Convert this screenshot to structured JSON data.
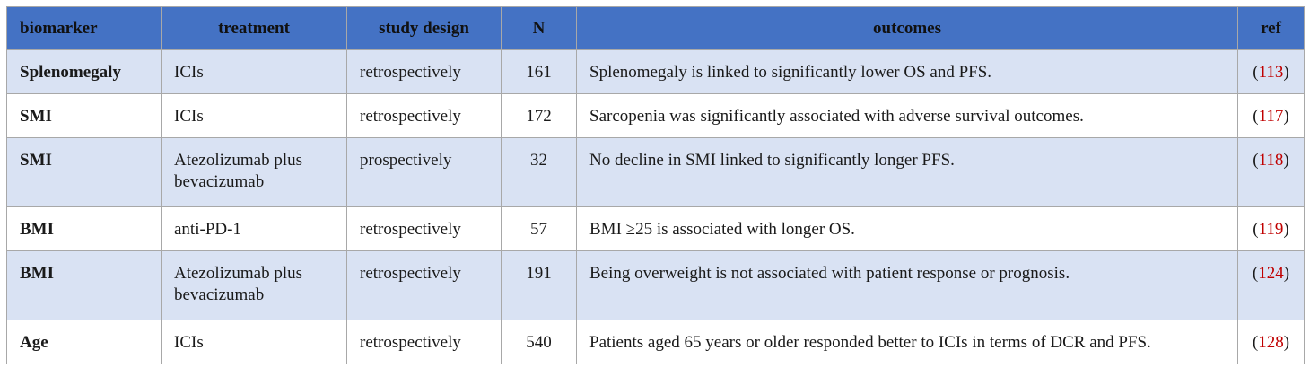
{
  "header": [
    "biomarker",
    "treatment",
    "study design",
    "N",
    "outcomes",
    "ref"
  ],
  "rows": [
    {
      "biomarker": "Splenomegaly",
      "treatment": "ICIs",
      "design": "retrospectively",
      "n": "161",
      "outcome": "Splenomegaly is linked to significantly lower OS and PFS.",
      "ref": "113"
    },
    {
      "biomarker": "SMI",
      "treatment": "ICIs",
      "design": "retrospectively",
      "n": "172",
      "outcome": "Sarcopenia was significantly associated with adverse survival outcomes.",
      "ref": "117"
    },
    {
      "biomarker": "SMI",
      "treatment": "Atezolizumab plus bevacizumab",
      "design": "prospectively",
      "n": "32",
      "outcome": "No decline in SMI linked to significantly longer PFS.",
      "ref": "118"
    },
    {
      "biomarker": "BMI",
      "treatment": "anti-PD-1",
      "design": "retrospectively",
      "n": "57",
      "outcome": "BMI ≥25 is associated with longer OS.",
      "ref": "119"
    },
    {
      "biomarker": "BMI",
      "treatment": "Atezolizumab plus bevacizumab",
      "design": "retrospectively",
      "n": "191",
      "outcome": "Being overweight is not associated with patient response or prognosis.",
      "ref": "124"
    },
    {
      "biomarker": "Age",
      "treatment": "ICIs",
      "design": "retrospectively",
      "n": "540",
      "outcome": "Patients aged 65 years or older responded better to ICIs in terms of DCR and PFS.",
      "ref": "128"
    }
  ],
  "colors": {
    "header_bg": "#4472c4",
    "row_shade": "#d9e2f3",
    "ref_text": "#c00000"
  }
}
